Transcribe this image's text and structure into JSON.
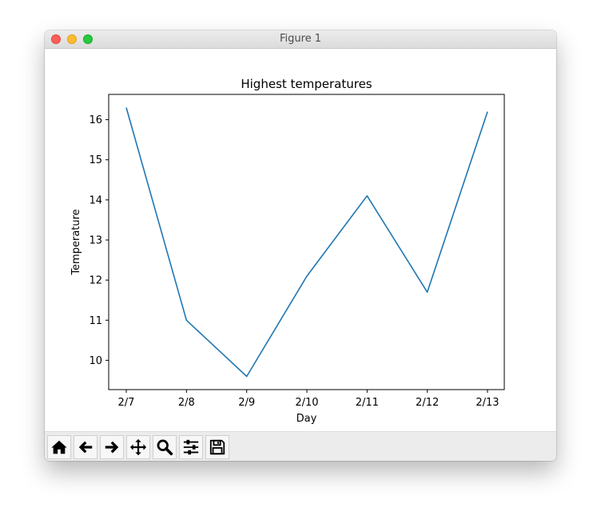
{
  "window": {
    "title": "Figure 1"
  },
  "toolbar": {
    "items": [
      {
        "icon": "home-icon"
      },
      {
        "icon": "back-arrow-icon"
      },
      {
        "icon": "forward-arrow-icon"
      },
      {
        "icon": "pan-icon"
      },
      {
        "icon": "zoom-icon"
      },
      {
        "icon": "configure-subplots-icon"
      },
      {
        "icon": "save-icon"
      }
    ]
  },
  "chart_data": {
    "type": "line",
    "title": "Highest temperatures",
    "xlabel": "Day",
    "ylabel": "Temperature",
    "categories": [
      "2/7",
      "2/8",
      "2/9",
      "2/10",
      "2/11",
      "2/12",
      "2/13"
    ],
    "series": [
      {
        "values": [
          16.3,
          11.0,
          9.6,
          12.1,
          14.1,
          11.7,
          16.2
        ],
        "color": "#1f77b4"
      }
    ],
    "yticks": [
      10,
      11,
      12,
      13,
      14,
      15,
      16
    ],
    "ylim": [
      9.27,
      16.63
    ],
    "grid": false
  }
}
